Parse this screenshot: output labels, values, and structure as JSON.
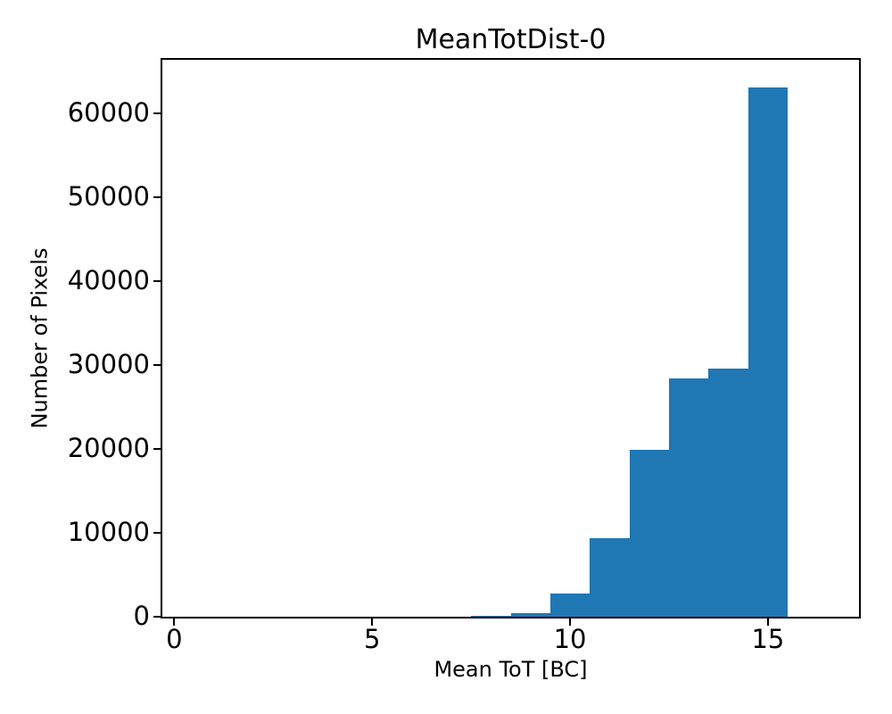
{
  "chart_data": {
    "type": "bar",
    "subtype": "histogram",
    "title": "MeanTotDist-0",
    "xlabel": "Mean ToT [BC]",
    "ylabel": "Number of Pixels",
    "bar_color": "#1f77b4",
    "bin_edges": [
      7.5,
      8.5,
      9.5,
      10.5,
      11.5,
      12.5,
      13.5,
      14.5,
      15.5
    ],
    "counts": [
      150,
      400,
      2800,
      9400,
      19900,
      28400,
      29600,
      63100
    ],
    "xlim": [
      -0.3,
      17.3
    ],
    "ylim": [
      0,
      66350
    ],
    "xticks": [
      0,
      5,
      10,
      15
    ],
    "yticks": [
      0,
      10000,
      20000,
      30000,
      40000,
      50000,
      60000
    ],
    "xtick_labels": [
      "0",
      "5",
      "10",
      "15"
    ],
    "ytick_labels": [
      "0",
      "10000",
      "20000",
      "30000",
      "40000",
      "50000",
      "60000"
    ],
    "grid": false,
    "legend_position": "none"
  }
}
